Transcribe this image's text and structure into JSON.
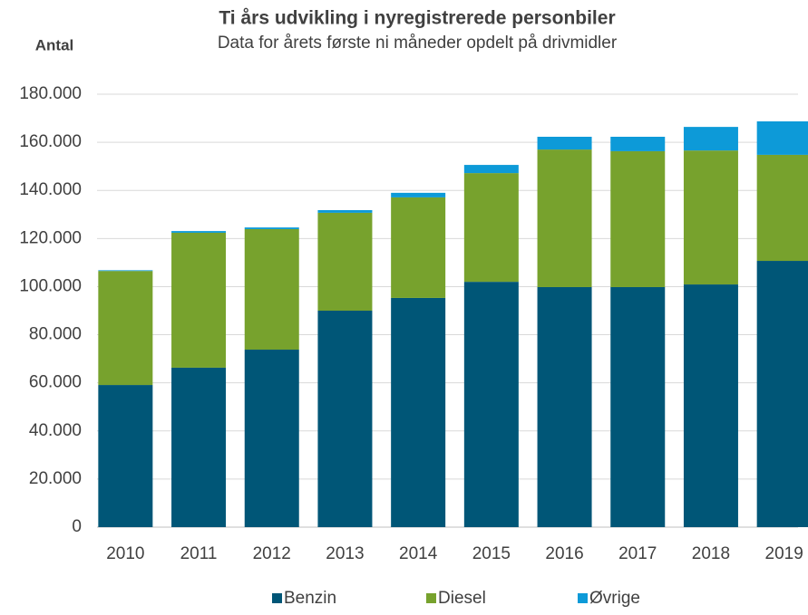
{
  "chart_data": {
    "type": "stacked_bar",
    "title": "Ti års udvikling i nyregistrerede personbiler",
    "subtitle": "Data for årets første ni måneder opdelt på drivmidler",
    "y_axis_label": "Antal",
    "categories": [
      "2010",
      "2011",
      "2012",
      "2013",
      "2014",
      "2015",
      "2016",
      "2017",
      "2018",
      "2019"
    ],
    "series": [
      {
        "name": "Benzin",
        "color": "#005677",
        "values": [
          59100,
          66300,
          73800,
          90000,
          95300,
          102000,
          99800,
          99800,
          100900,
          110700
        ]
      },
      {
        "name": "Diesel",
        "color": "#77a22d",
        "values": [
          47400,
          56100,
          50100,
          40700,
          41800,
          45200,
          57200,
          56500,
          55700,
          44100
        ]
      },
      {
        "name": "Øvrige",
        "color": "#0d9ad8",
        "values": [
          300,
          700,
          700,
          1100,
          1900,
          3400,
          5300,
          6000,
          9800,
          13900
        ]
      }
    ],
    "ylim": [
      0,
      180000
    ],
    "yticks": [
      0,
      {
        "value": 20000,
        "label": "20.000"
      },
      {
        "value": 40000,
        "label": "40.000"
      },
      {
        "value": 60000,
        "label": "60.000"
      },
      {
        "value": 80000,
        "label": "80.000"
      },
      {
        "value": 100000,
        "label": "100.000"
      },
      {
        "value": 120000,
        "label": "120.000"
      },
      {
        "value": 140000,
        "label": "140.000"
      },
      {
        "value": 160000,
        "label": "160.000"
      },
      {
        "value": 180000,
        "label": "180.000"
      }
    ],
    "grid": true,
    "legend": "bottom"
  }
}
